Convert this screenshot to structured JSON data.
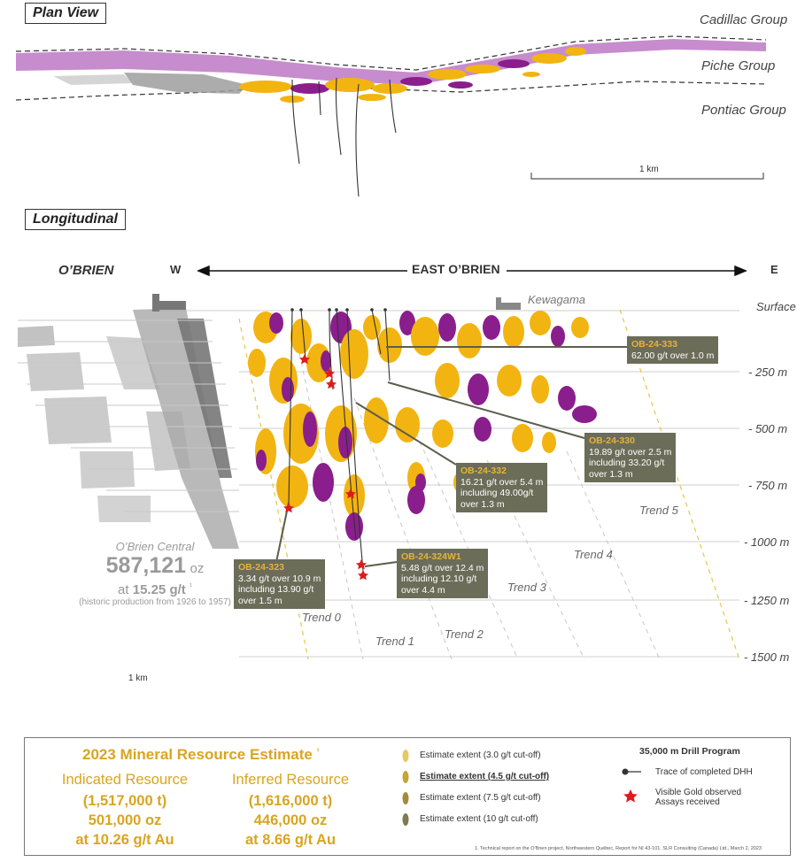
{
  "plan_view": {
    "title": "Plan View",
    "groups": [
      "Cadillac Group",
      "Piche Group",
      "Pontiac Group"
    ],
    "scale_label": "1 km"
  },
  "longitudinal": {
    "title": "Longitudinal",
    "west_label": "O’BRIEN",
    "w": "W",
    "e": "E",
    "east_label": "EAST O’BRIEN",
    "kewagama": "Kewagama",
    "depths": [
      "Surface",
      "- 250 m",
      "- 500 m",
      "- 750 m",
      "- 1000 m",
      "- 1250 m",
      "- 1500 m"
    ],
    "trends": [
      "Trend 0",
      "Trend 1",
      "Trend 2",
      "Trend 3",
      "Trend 4",
      "Trend 5"
    ],
    "scale_label": "1 km",
    "obrien_central": {
      "name": "O’Brien Central",
      "oz_value": "587,121",
      "oz_unit": "oz",
      "grade_prefix": "at",
      "grade": "15.25 g/t",
      "grade_sup": "¹",
      "note": "(historic production from 1926 to 1957)"
    },
    "callouts": [
      {
        "hole": "OB-24-333",
        "lines": [
          "62.00 g/t over 1.0 m"
        ]
      },
      {
        "hole": "OB-24-330",
        "lines": [
          "19.89 g/t over 2.5 m",
          "including 33.20 g/t",
          "over 1.3 m"
        ]
      },
      {
        "hole": "OB-24-332",
        "lines": [
          "16.21 g/t over 5.4 m",
          "including 49.00g/t",
          "over 1.3 m"
        ]
      },
      {
        "hole": "OB-24-323",
        "lines": [
          "3.34 g/t over 10.9 m",
          "including 13.90 g/t",
          "over 1.5 m"
        ]
      },
      {
        "hole": "OB-24-324W1",
        "lines": [
          "5.48 g/t over 12.4 m",
          "including 12.10 g/t",
          "over 4.4 m"
        ]
      }
    ]
  },
  "resource": {
    "title": "2023 Mineral Resource Estimate",
    "title_sup": "¹",
    "indicated": {
      "heading": "Indicated Resource",
      "tonnes": "(1,517,000 t)",
      "ounces": "501,000 oz",
      "grade": "at 10.26 g/t Au"
    },
    "inferred": {
      "heading": "Inferred Resource",
      "tonnes": "(1,616,000 t)",
      "ounces": "446,000 oz",
      "grade": "at 8.66 g/t Au"
    }
  },
  "legend": {
    "items": [
      {
        "label": "Estimate extent (3.0  g/t cut-off)",
        "color": "#e8c766"
      },
      {
        "label": "Estimate extent (4.5  g/t cut-off)",
        "color": "#c7a437"
      },
      {
        "label": "Estimate extent (7.5 g/t cut-off)",
        "color": "#a28b3a"
      },
      {
        "label": "Estimate extent (10 g/t cut-off)",
        "color": "#7f7a4f"
      }
    ],
    "drill_title": "35,000 m Drill Program",
    "dhh_label": "Trace of completed DHH",
    "gold_label_1": "Visible Gold observed",
    "gold_label_2": "Assays received",
    "footnote": "1. Technical report on the O’Brien project, Northwestern Québec, Report for NI 43-101. SLR Consulting (Canada) Ltd., March 2, 2023"
  },
  "colors": {
    "gold": "#f2b410",
    "purple": "#8a1e8c",
    "lilac": "#c17fc9",
    "star": "#dd1c1c",
    "callout_bg": "#6b6d59"
  }
}
